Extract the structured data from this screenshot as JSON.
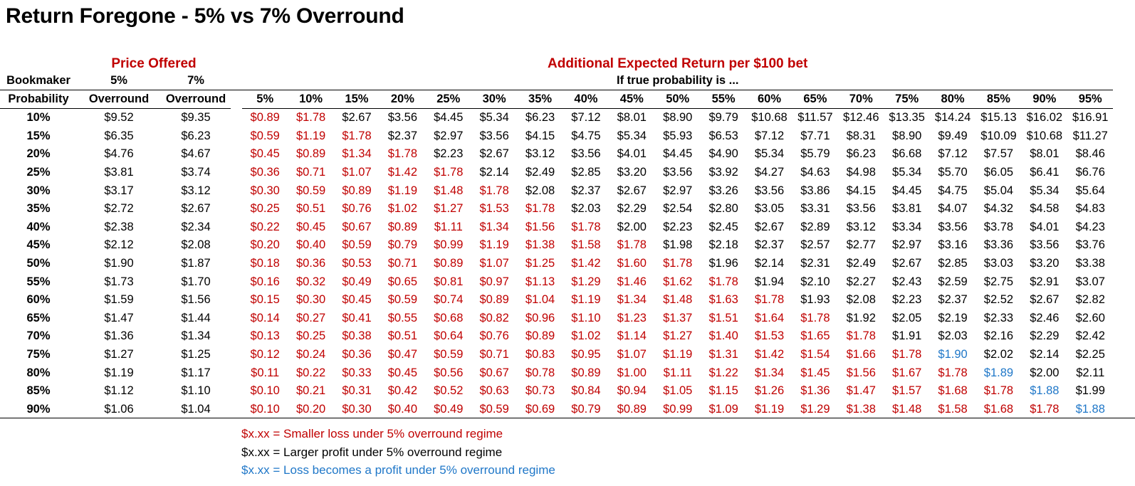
{
  "title": "Return Foregone - 5% vs 7% Overround",
  "headers": {
    "price_offered": "Price Offered",
    "additional_return": "Additional Expected Return per $100 bet",
    "bookmaker_line1": "Bookmaker",
    "bookmaker_line2": "Probability",
    "five_line1": "5%",
    "five_line2": "Overround",
    "seven_line1": "7%",
    "seven_line2": "Overround",
    "if_true": "If true probability is ...",
    "true_probs": [
      "5%",
      "10%",
      "15%",
      "20%",
      "25%",
      "30%",
      "35%",
      "40%",
      "45%",
      "50%",
      "55%",
      "60%",
      "65%",
      "70%",
      "75%",
      "80%",
      "85%",
      "90%",
      "95%"
    ]
  },
  "colors": {
    "red": "#c00000",
    "black": "#000000",
    "blue": "#1f77c8"
  },
  "rows": [
    {
      "bk": "10%",
      "p5": "$9.52",
      "p7": "$9.35",
      "values": [
        "$0.89",
        "$1.78",
        "$2.67",
        "$3.56",
        "$4.45",
        "$5.34",
        "$6.23",
        "$7.12",
        "$8.01",
        "$8.90",
        "$9.79",
        "$10.68",
        "$11.57",
        "$12.46",
        "$13.35",
        "$14.24",
        "$15.13",
        "$16.02",
        "$16.91"
      ],
      "red_count": 2,
      "blue_index": -1
    },
    {
      "bk": "15%",
      "p5": "$6.35",
      "p7": "$6.23",
      "values": [
        "$0.59",
        "$1.19",
        "$1.78",
        "$2.37",
        "$2.97",
        "$3.56",
        "$4.15",
        "$4.75",
        "$5.34",
        "$5.93",
        "$6.53",
        "$7.12",
        "$7.71",
        "$8.31",
        "$8.90",
        "$9.49",
        "$10.09",
        "$10.68",
        "$11.27"
      ],
      "red_count": 3,
      "blue_index": -1
    },
    {
      "bk": "20%",
      "p5": "$4.76",
      "p7": "$4.67",
      "values": [
        "$0.45",
        "$0.89",
        "$1.34",
        "$1.78",
        "$2.23",
        "$2.67",
        "$3.12",
        "$3.56",
        "$4.01",
        "$4.45",
        "$4.90",
        "$5.34",
        "$5.79",
        "$6.23",
        "$6.68",
        "$7.12",
        "$7.57",
        "$8.01",
        "$8.46"
      ],
      "red_count": 4,
      "blue_index": -1
    },
    {
      "bk": "25%",
      "p5": "$3.81",
      "p7": "$3.74",
      "values": [
        "$0.36",
        "$0.71",
        "$1.07",
        "$1.42",
        "$1.78",
        "$2.14",
        "$2.49",
        "$2.85",
        "$3.20",
        "$3.56",
        "$3.92",
        "$4.27",
        "$4.63",
        "$4.98",
        "$5.34",
        "$5.70",
        "$6.05",
        "$6.41",
        "$6.76"
      ],
      "red_count": 5,
      "blue_index": -1
    },
    {
      "bk": "30%",
      "p5": "$3.17",
      "p7": "$3.12",
      "values": [
        "$0.30",
        "$0.59",
        "$0.89",
        "$1.19",
        "$1.48",
        "$1.78",
        "$2.08",
        "$2.37",
        "$2.67",
        "$2.97",
        "$3.26",
        "$3.56",
        "$3.86",
        "$4.15",
        "$4.45",
        "$4.75",
        "$5.04",
        "$5.34",
        "$5.64"
      ],
      "red_count": 6,
      "blue_index": -1
    },
    {
      "bk": "35%",
      "p5": "$2.72",
      "p7": "$2.67",
      "values": [
        "$0.25",
        "$0.51",
        "$0.76",
        "$1.02",
        "$1.27",
        "$1.53",
        "$1.78",
        "$2.03",
        "$2.29",
        "$2.54",
        "$2.80",
        "$3.05",
        "$3.31",
        "$3.56",
        "$3.81",
        "$4.07",
        "$4.32",
        "$4.58",
        "$4.83"
      ],
      "red_count": 7,
      "blue_index": -1
    },
    {
      "bk": "40%",
      "p5": "$2.38",
      "p7": "$2.34",
      "values": [
        "$0.22",
        "$0.45",
        "$0.67",
        "$0.89",
        "$1.11",
        "$1.34",
        "$1.56",
        "$1.78",
        "$2.00",
        "$2.23",
        "$2.45",
        "$2.67",
        "$2.89",
        "$3.12",
        "$3.34",
        "$3.56",
        "$3.78",
        "$4.01",
        "$4.23"
      ],
      "red_count": 8,
      "blue_index": -1
    },
    {
      "bk": "45%",
      "p5": "$2.12",
      "p7": "$2.08",
      "values": [
        "$0.20",
        "$0.40",
        "$0.59",
        "$0.79",
        "$0.99",
        "$1.19",
        "$1.38",
        "$1.58",
        "$1.78",
        "$1.98",
        "$2.18",
        "$2.37",
        "$2.57",
        "$2.77",
        "$2.97",
        "$3.16",
        "$3.36",
        "$3.56",
        "$3.76"
      ],
      "red_count": 9,
      "blue_index": -1
    },
    {
      "bk": "50%",
      "p5": "$1.90",
      "p7": "$1.87",
      "values": [
        "$0.18",
        "$0.36",
        "$0.53",
        "$0.71",
        "$0.89",
        "$1.07",
        "$1.25",
        "$1.42",
        "$1.60",
        "$1.78",
        "$1.96",
        "$2.14",
        "$2.31",
        "$2.49",
        "$2.67",
        "$2.85",
        "$3.03",
        "$3.20",
        "$3.38"
      ],
      "red_count": 10,
      "blue_index": -1
    },
    {
      "bk": "55%",
      "p5": "$1.73",
      "p7": "$1.70",
      "values": [
        "$0.16",
        "$0.32",
        "$0.49",
        "$0.65",
        "$0.81",
        "$0.97",
        "$1.13",
        "$1.29",
        "$1.46",
        "$1.62",
        "$1.78",
        "$1.94",
        "$2.10",
        "$2.27",
        "$2.43",
        "$2.59",
        "$2.75",
        "$2.91",
        "$3.07"
      ],
      "red_count": 11,
      "blue_index": -1
    },
    {
      "bk": "60%",
      "p5": "$1.59",
      "p7": "$1.56",
      "values": [
        "$0.15",
        "$0.30",
        "$0.45",
        "$0.59",
        "$0.74",
        "$0.89",
        "$1.04",
        "$1.19",
        "$1.34",
        "$1.48",
        "$1.63",
        "$1.78",
        "$1.93",
        "$2.08",
        "$2.23",
        "$2.37",
        "$2.52",
        "$2.67",
        "$2.82"
      ],
      "red_count": 12,
      "blue_index": -1
    },
    {
      "bk": "65%",
      "p5": "$1.47",
      "p7": "$1.44",
      "values": [
        "$0.14",
        "$0.27",
        "$0.41",
        "$0.55",
        "$0.68",
        "$0.82",
        "$0.96",
        "$1.10",
        "$1.23",
        "$1.37",
        "$1.51",
        "$1.64",
        "$1.78",
        "$1.92",
        "$2.05",
        "$2.19",
        "$2.33",
        "$2.46",
        "$2.60"
      ],
      "red_count": 13,
      "blue_index": -1
    },
    {
      "bk": "70%",
      "p5": "$1.36",
      "p7": "$1.34",
      "values": [
        "$0.13",
        "$0.25",
        "$0.38",
        "$0.51",
        "$0.64",
        "$0.76",
        "$0.89",
        "$1.02",
        "$1.14",
        "$1.27",
        "$1.40",
        "$1.53",
        "$1.65",
        "$1.78",
        "$1.91",
        "$2.03",
        "$2.16",
        "$2.29",
        "$2.42"
      ],
      "red_count": 14,
      "blue_index": -1
    },
    {
      "bk": "75%",
      "p5": "$1.27",
      "p7": "$1.25",
      "values": [
        "$0.12",
        "$0.24",
        "$0.36",
        "$0.47",
        "$0.59",
        "$0.71",
        "$0.83",
        "$0.95",
        "$1.07",
        "$1.19",
        "$1.31",
        "$1.42",
        "$1.54",
        "$1.66",
        "$1.78",
        "$1.90",
        "$2.02",
        "$2.14",
        "$2.25"
      ],
      "red_count": 15,
      "blue_index": 15
    },
    {
      "bk": "80%",
      "p5": "$1.19",
      "p7": "$1.17",
      "values": [
        "$0.11",
        "$0.22",
        "$0.33",
        "$0.45",
        "$0.56",
        "$0.67",
        "$0.78",
        "$0.89",
        "$1.00",
        "$1.11",
        "$1.22",
        "$1.34",
        "$1.45",
        "$1.56",
        "$1.67",
        "$1.78",
        "$1.89",
        "$2.00",
        "$2.11"
      ],
      "red_count": 16,
      "blue_index": 16
    },
    {
      "bk": "85%",
      "p5": "$1.12",
      "p7": "$1.10",
      "values": [
        "$0.10",
        "$0.21",
        "$0.31",
        "$0.42",
        "$0.52",
        "$0.63",
        "$0.73",
        "$0.84",
        "$0.94",
        "$1.05",
        "$1.15",
        "$1.26",
        "$1.36",
        "$1.47",
        "$1.57",
        "$1.68",
        "$1.78",
        "$1.88",
        "$1.99"
      ],
      "red_count": 17,
      "blue_index": 17
    },
    {
      "bk": "90%",
      "p5": "$1.06",
      "p7": "$1.04",
      "values": [
        "$0.10",
        "$0.20",
        "$0.30",
        "$0.40",
        "$0.49",
        "$0.59",
        "$0.69",
        "$0.79",
        "$0.89",
        "$0.99",
        "$1.09",
        "$1.19",
        "$1.29",
        "$1.38",
        "$1.48",
        "$1.58",
        "$1.68",
        "$1.78",
        "$1.88"
      ],
      "red_count": 18,
      "blue_index": 18
    }
  ],
  "legend": {
    "red": "$x.xx = Smaller loss under 5% overround regime",
    "black": "$x.xx = Larger profit under 5% overround regime",
    "blue": "$x.xx = Loss becomes a profit under 5% overround regime"
  }
}
